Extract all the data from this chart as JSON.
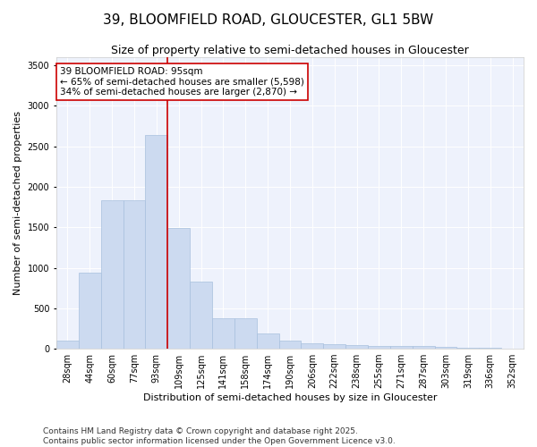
{
  "title": "39, BLOOMFIELD ROAD, GLOUCESTER, GL1 5BW",
  "subtitle": "Size of property relative to semi-detached houses in Gloucester",
  "xlabel": "Distribution of semi-detached houses by size in Gloucester",
  "ylabel": "Number of semi-detached properties",
  "bin_labels": [
    "28sqm",
    "44sqm",
    "60sqm",
    "77sqm",
    "93sqm",
    "109sqm",
    "125sqm",
    "141sqm",
    "158sqm",
    "174sqm",
    "190sqm",
    "206sqm",
    "222sqm",
    "238sqm",
    "255sqm",
    "271sqm",
    "287sqm",
    "303sqm",
    "319sqm",
    "336sqm",
    "352sqm"
  ],
  "bar_values": [
    95,
    940,
    1830,
    1830,
    2640,
    1490,
    830,
    380,
    380,
    185,
    100,
    70,
    55,
    45,
    35,
    30,
    35,
    20,
    15,
    10,
    5
  ],
  "bar_color": "#ccdaf0",
  "bar_edge_color": "#a8c0de",
  "vline_x": 5.0,
  "vline_color": "#cc0000",
  "annotation_text": "39 BLOOMFIELD ROAD: 95sqm\n← 65% of semi-detached houses are smaller (5,598)\n34% of semi-detached houses are larger (2,870) →",
  "annotation_box_color": "#ffffff",
  "annotation_box_edge": "#cc0000",
  "ylim": [
    0,
    3600
  ],
  "yticks": [
    0,
    500,
    1000,
    1500,
    2000,
    2500,
    3000,
    3500
  ],
  "background_color": "#eef2fc",
  "footer_text": "Contains HM Land Registry data © Crown copyright and database right 2025.\nContains public sector information licensed under the Open Government Licence v3.0.",
  "title_fontsize": 11,
  "subtitle_fontsize": 9,
  "axis_label_fontsize": 8,
  "tick_fontsize": 7,
  "annotation_fontsize": 7.5,
  "footer_fontsize": 6.5
}
